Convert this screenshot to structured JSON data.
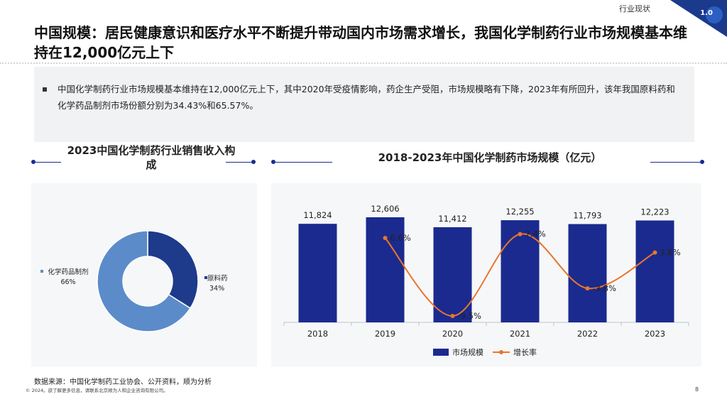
{
  "header": {
    "section_tag": "行业现状",
    "badge": "1.0",
    "title": "中国规模：居民健康意识和医疗水平不断提升带动国内市场需求增长，我国化学制药行业市场规模基本维持在12,000亿元上下"
  },
  "summary": {
    "text": "中国化学制药行业市场规模基本维持在12,000亿元上下，其中2020年受疫情影响，药企生产受阻，市场规模略有下降，2023年有所回升，该年我国原料药和化学药品制剂市场份额分别为34.43%和65.57%。"
  },
  "footer": {
    "source": "数据来源：中国化学制药工业协会、公开资料，顺为分析",
    "copyright": "© 2024。欲了解更多信息，请联系北京顺为人和企业咨询有限公司。",
    "page": "8"
  },
  "colors": {
    "bar": "#1b2a8e",
    "line": "#e8762c",
    "donut_dark": "#1e3a8a",
    "donut_light": "#5b8cc9",
    "accent": "#1b2a8e"
  },
  "chart_data": [
    {
      "type": "pie",
      "title": "2023中国化学制药行业销售收入构成",
      "donut": true,
      "labels": [
        "原料药",
        "化学药品制剂"
      ],
      "values": [
        34,
        66
      ],
      "display_values": [
        "34%",
        "66%"
      ]
    },
    {
      "type": "bar",
      "title": "2018-2023年中国化学制药市场规模（亿元）",
      "categories": [
        "2018",
        "2019",
        "2020",
        "2021",
        "2022",
        "2023"
      ],
      "series": [
        {
          "name": "市场规模",
          "type": "bar",
          "values": [
            11824,
            12606,
            11412,
            12255,
            11793,
            12223
          ],
          "labels": [
            "11,824",
            "12,606",
            "11,412",
            "12,255",
            "11,793",
            "12,223"
          ]
        },
        {
          "name": "增长率",
          "type": "line",
          "values": [
            null,
            6.6,
            -9.5,
            7.4,
            -3.8,
            3.6
          ],
          "labels": [
            "",
            "6.6%",
            "-9.5%",
            "7.4%",
            "-3.8%",
            "3.6%"
          ]
        }
      ],
      "legend": "bottom"
    }
  ]
}
